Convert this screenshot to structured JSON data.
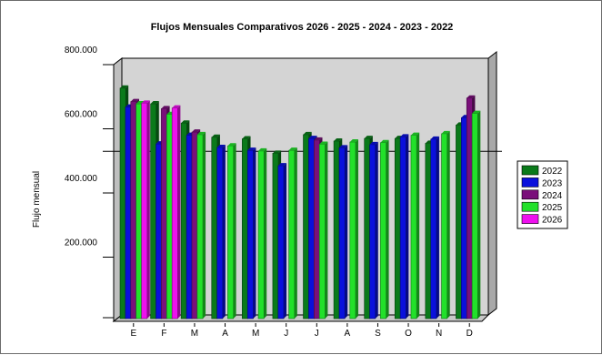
{
  "chart_data": {
    "type": "bar",
    "title": "Flujos Mensuales Comparativos 2026 - 2025 - 2024 - 2023 - 2022",
    "xlabel": "",
    "ylabel": "Flujo mensual",
    "ylim": [
      0,
      800000
    ],
    "yticks": [
      "200.000",
      "400.000",
      "600.000",
      "800.000"
    ],
    "ytick_values": [
      200000,
      400000,
      600000,
      800000
    ],
    "reference_line": 510000,
    "categories": [
      "E",
      "F",
      "M",
      "A",
      "M",
      "J",
      "J",
      "A",
      "S",
      "O",
      "N",
      "D"
    ],
    "grid": false,
    "legend_position": "right",
    "series": [
      {
        "name": "2022",
        "color": "#0a7a1a",
        "values": [
          707000,
          658000,
          598000,
          554000,
          549000,
          504000,
          562000,
          542000,
          550000,
          550000,
          535000,
          592000
        ]
      },
      {
        "name": "2023",
        "color": "#0a10dc",
        "values": [
          648000,
          533000,
          560000,
          522000,
          513000,
          465000,
          550000,
          521000,
          531000,
          555000,
          548000,
          615000
        ]
      },
      {
        "name": "2024",
        "color": "#7a0f7a",
        "values": [
          665000,
          643000,
          570000,
          null,
          null,
          null,
          545000,
          null,
          null,
          null,
          null,
          676000
        ]
      },
      {
        "name": "2025",
        "color": "#22e02a",
        "values": [
          658000,
          625000,
          562000,
          527000,
          511000,
          513000,
          532000,
          539000,
          537000,
          560000,
          565000,
          628000
        ]
      },
      {
        "name": "2026",
        "color": "#ee10ee",
        "values": [
          660000,
          645000,
          null,
          null,
          null,
          null,
          null,
          null,
          null,
          null,
          null,
          null
        ]
      }
    ]
  }
}
